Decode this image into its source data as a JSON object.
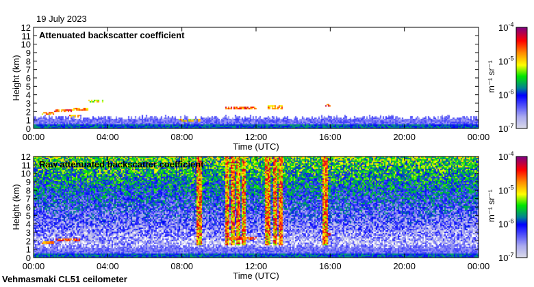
{
  "header": {
    "date": "19 July 2023"
  },
  "footer": {
    "instrument": "Vehmasmaki CL51 ceilometer"
  },
  "chart_data": [
    {
      "type": "heatmap",
      "title": "Attenuated backscatter coefficient",
      "xlabel": "Time (UTC)",
      "ylabel": "Height (km)",
      "xlim_hours": [
        0,
        24
      ],
      "ylim": [
        0,
        12
      ],
      "xticks": [
        "00:00",
        "04:00",
        "08:00",
        "12:00",
        "16:00",
        "20:00",
        "00:00"
      ],
      "yticks": [
        "0",
        "1",
        "2",
        "3",
        "4",
        "5",
        "6",
        "7",
        "8",
        "9",
        "10",
        "11",
        "12"
      ],
      "colorbar": {
        "label": "m-1 sr-1",
        "scale": "log",
        "range": [
          1e-07,
          0.0001
        ],
        "ticks": [
          "-7",
          "-6",
          "-5",
          "-4"
        ]
      },
      "noise_level": 0,
      "boundary_layer_top_km": 1.5,
      "cloud_layers": [
        {
          "start_h": 0.4,
          "end_h": 1.1,
          "height_km": 1.85,
          "log_value": -4.8
        },
        {
          "start_h": 1.1,
          "end_h": 2.0,
          "height_km": 2.15,
          "log_value": -4.6
        },
        {
          "start_h": 2.0,
          "end_h": 2.9,
          "height_km": 2.3,
          "log_value": -4.8
        },
        {
          "start_h": 1.9,
          "end_h": 2.5,
          "height_km": 1.6,
          "log_value": -4.7
        },
        {
          "start_h": 2.9,
          "end_h": 3.7,
          "height_km": 3.3,
          "log_value": -5.2
        },
        {
          "start_h": 7.8,
          "end_h": 9.0,
          "height_km": 1.1,
          "log_value": -4.9
        },
        {
          "start_h": 10.3,
          "end_h": 12.0,
          "height_km": 2.5,
          "log_value": -4.6
        },
        {
          "start_h": 12.6,
          "end_h": 13.4,
          "height_km": 2.6,
          "log_value": -4.8
        },
        {
          "start_h": 15.7,
          "end_h": 16.0,
          "height_km": 2.85,
          "log_value": -4.5
        }
      ]
    },
    {
      "type": "heatmap",
      "title": "Raw attenuated backscatter coefficient",
      "xlabel": "Time (UTC)",
      "ylabel": "Height (km)",
      "xlim_hours": [
        0,
        24
      ],
      "ylim": [
        0,
        12
      ],
      "xticks": [
        "00:00",
        "04:00",
        "08:00",
        "12:00",
        "16:00",
        "20:00",
        "00:00"
      ],
      "yticks": [
        "0",
        "1",
        "2",
        "3",
        "4",
        "5",
        "6",
        "7",
        "8",
        "9",
        "10",
        "11",
        "12"
      ],
      "colorbar": {
        "label": "m-1 sr-1",
        "scale": "log",
        "range": [
          1e-07,
          0.0001
        ],
        "ticks": [
          "-7",
          "-6",
          "-5",
          "-4"
        ]
      },
      "noise_level": 1,
      "boundary_layer_top_km": 1.5,
      "noise_columns_h": [
        8.9,
        10.4,
        10.7,
        11.0,
        11.3,
        12.6,
        13.0,
        13.3,
        15.7
      ],
      "cloud_layers": [
        {
          "start_h": 0.4,
          "end_h": 1.1,
          "height_km": 1.85,
          "log_value": -4.8
        },
        {
          "start_h": 1.1,
          "end_h": 2.5,
          "height_km": 2.2,
          "log_value": -4.6
        },
        {
          "start_h": 10.3,
          "end_h": 12.0,
          "height_km": 2.4,
          "log_value": -4.6
        },
        {
          "start_h": 15.7,
          "end_h": 16.0,
          "height_km": 2.8,
          "log_value": -4.5
        }
      ]
    }
  ],
  "colors": {
    "axis": "#000000",
    "background": "#ffffff"
  }
}
